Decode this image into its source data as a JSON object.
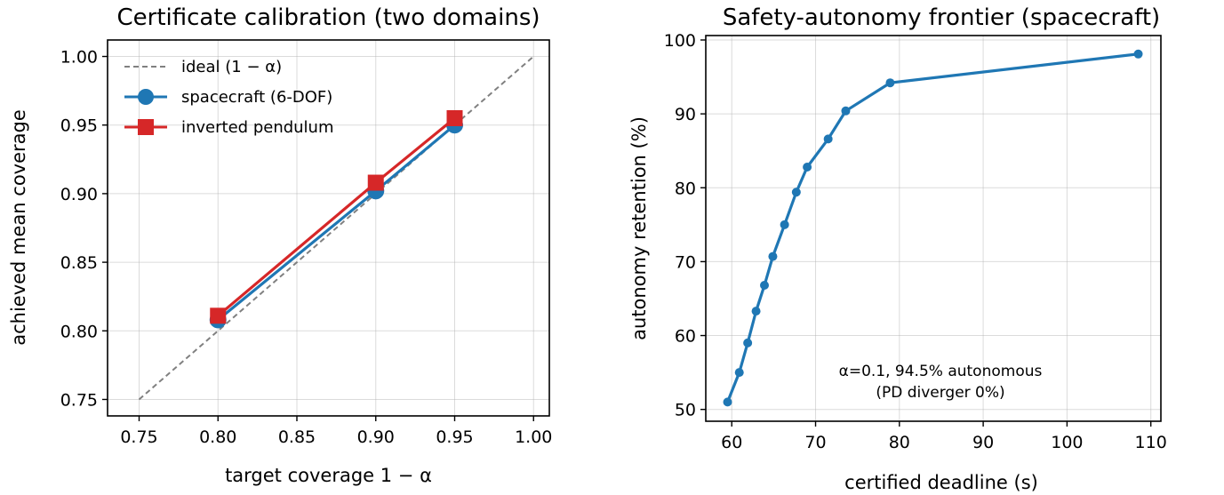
{
  "colors": {
    "spacecraft": "#1f77b4",
    "pendulum": "#d62728",
    "ideal": "#808080"
  },
  "chart_data": [
    {
      "type": "line",
      "title": "Certificate calibration (two domains)",
      "xlabel": "target coverage 1 − α",
      "ylabel": "achieved mean coverage",
      "xlim": [
        0.73,
        1.01
      ],
      "ylim": [
        0.738,
        1.012
      ],
      "xticks": [
        0.75,
        0.8,
        0.85,
        0.9,
        0.95,
        1.0
      ],
      "yticks": [
        0.75,
        0.8,
        0.85,
        0.9,
        0.95,
        1.0
      ],
      "xtick_labels": [
        "0.75",
        "0.80",
        "0.85",
        "0.90",
        "0.95",
        "1.00"
      ],
      "ytick_labels": [
        "0.75",
        "0.80",
        "0.85",
        "0.90",
        "0.95",
        "1.00"
      ],
      "grid": true,
      "legend": "top-left",
      "series": [
        {
          "name": "ideal (1 − α)",
          "style": "dashed",
          "x": [
            0.75,
            1.0
          ],
          "y": [
            0.75,
            1.0
          ]
        },
        {
          "name": "spacecraft (6-DOF)",
          "marker": "circle",
          "x": [
            0.8,
            0.9,
            0.95
          ],
          "y": [
            0.808,
            0.902,
            0.95
          ]
        },
        {
          "name": "inverted pendulum",
          "marker": "square",
          "x": [
            0.8,
            0.9,
            0.95
          ],
          "y": [
            0.811,
            0.908,
            0.955
          ]
        }
      ]
    },
    {
      "type": "line",
      "title": "Safety-autonomy frontier (spacecraft)",
      "xlabel": "certified deadline (s)",
      "ylabel": "autonomy retention (%)",
      "xlim": [
        56.9,
        111.2
      ],
      "ylim": [
        48.4,
        100.6
      ],
      "xticks": [
        60,
        70,
        80,
        90,
        100,
        110
      ],
      "yticks": [
        50,
        60,
        70,
        80,
        90,
        100
      ],
      "xtick_labels": [
        "60",
        "70",
        "80",
        "90",
        "100",
        "110"
      ],
      "ytick_labels": [
        "50",
        "60",
        "70",
        "80",
        "90",
        "100"
      ],
      "grid": true,
      "annotation": [
        "α=0.1, 94.5% autonomous",
        "(PD diverger 0%)"
      ],
      "series": [
        {
          "marker": "dot",
          "x": [
            59.5,
            60.9,
            61.9,
            62.9,
            63.9,
            64.9,
            66.3,
            67.7,
            69.0,
            71.5,
            73.6,
            78.9,
            108.5
          ],
          "y": [
            51.0,
            55.0,
            59.0,
            63.3,
            66.8,
            70.7,
            75.0,
            79.4,
            82.8,
            86.6,
            90.4,
            94.2,
            98.1
          ]
        }
      ]
    }
  ]
}
